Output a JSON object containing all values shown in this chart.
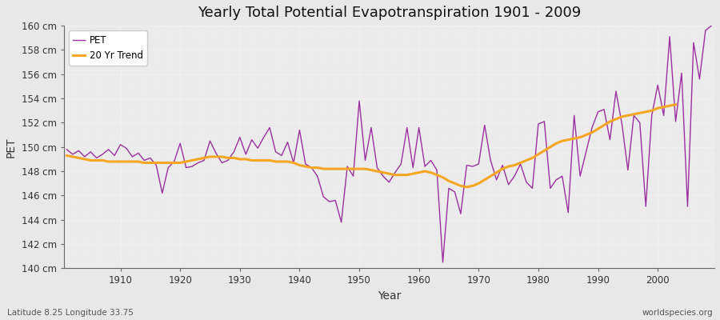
{
  "title": "Yearly Total Potential Evapotranspiration 1901 - 2009",
  "xlabel": "Year",
  "ylabel": "PET",
  "bottom_left_label": "Latitude 8.25 Longitude 33.75",
  "bottom_right_label": "worldspecies.org",
  "pet_color": "#9b30a0",
  "trend_color": "#f5a623",
  "background_color": "#e8e8e8",
  "plot_bg_color": "#ebebeb",
  "ylim": [
    140,
    160
  ],
  "years": [
    1901,
    1902,
    1903,
    1904,
    1905,
    1906,
    1907,
    1908,
    1909,
    1910,
    1911,
    1912,
    1913,
    1914,
    1915,
    1916,
    1917,
    1918,
    1919,
    1920,
    1921,
    1922,
    1923,
    1924,
    1925,
    1926,
    1927,
    1928,
    1929,
    1930,
    1931,
    1932,
    1933,
    1934,
    1935,
    1936,
    1937,
    1938,
    1939,
    1940,
    1941,
    1942,
    1943,
    1944,
    1945,
    1946,
    1947,
    1948,
    1949,
    1950,
    1951,
    1952,
    1953,
    1954,
    1955,
    1956,
    1957,
    1958,
    1959,
    1960,
    1961,
    1962,
    1963,
    1964,
    1965,
    1966,
    1967,
    1968,
    1969,
    1970,
    1971,
    1972,
    1973,
    1974,
    1975,
    1976,
    1977,
    1978,
    1979,
    1980,
    1981,
    1982,
    1983,
    1984,
    1985,
    1986,
    1987,
    1988,
    1989,
    1990,
    1991,
    1992,
    1993,
    1994,
    1995,
    1996,
    1997,
    1998,
    1999,
    2000,
    2001,
    2002,
    2003,
    2004,
    2005,
    2006,
    2007,
    2008,
    2009
  ],
  "pet_values": [
    149.8,
    149.4,
    149.7,
    149.2,
    149.6,
    149.1,
    149.4,
    149.8,
    149.3,
    150.2,
    149.9,
    149.2,
    149.5,
    148.9,
    149.1,
    148.5,
    146.2,
    148.3,
    148.8,
    150.3,
    148.3,
    148.4,
    148.7,
    148.9,
    150.5,
    149.5,
    148.7,
    148.9,
    149.6,
    150.8,
    149.4,
    150.6,
    149.9,
    150.8,
    151.6,
    149.6,
    149.3,
    150.4,
    148.7,
    151.4,
    148.6,
    148.3,
    147.6,
    145.9,
    145.5,
    145.6,
    143.8,
    148.4,
    147.6,
    153.8,
    148.9,
    151.6,
    148.3,
    147.6,
    147.1,
    147.9,
    148.6,
    151.6,
    148.3,
    151.6,
    148.4,
    148.9,
    148.1,
    140.5,
    146.6,
    146.3,
    144.5,
    148.5,
    148.4,
    148.6,
    151.8,
    148.9,
    147.3,
    148.5,
    146.9,
    147.6,
    148.6,
    147.1,
    146.6,
    151.9,
    152.1,
    146.6,
    147.3,
    147.6,
    144.6,
    152.6,
    147.6,
    149.6,
    151.6,
    152.9,
    153.1,
    150.6,
    154.6,
    151.9,
    148.1,
    152.6,
    152.0,
    145.1,
    152.6,
    155.1,
    152.6,
    159.1,
    152.1,
    156.1,
    145.1,
    158.6,
    155.6,
    159.6,
    160.0
  ],
  "trend_values": [
    149.3,
    149.2,
    149.1,
    149.0,
    148.9,
    148.9,
    148.9,
    148.8,
    148.8,
    148.8,
    148.8,
    148.8,
    148.8,
    148.7,
    148.7,
    148.7,
    148.7,
    148.7,
    148.7,
    148.7,
    148.8,
    148.9,
    149.0,
    149.1,
    149.2,
    149.2,
    149.2,
    149.1,
    149.1,
    149.0,
    149.0,
    148.9,
    148.9,
    148.9,
    148.9,
    148.8,
    148.8,
    148.8,
    148.7,
    148.5,
    148.4,
    148.3,
    148.3,
    148.2,
    148.2,
    148.2,
    148.2,
    148.2,
    148.2,
    148.2,
    148.2,
    148.1,
    148.0,
    147.9,
    147.8,
    147.7,
    147.7,
    147.7,
    147.8,
    147.9,
    148.0,
    147.9,
    147.7,
    147.5,
    147.2,
    147.0,
    146.8,
    146.7,
    146.8,
    147.0,
    147.3,
    147.6,
    147.9,
    148.2,
    148.4,
    148.5,
    148.7,
    148.9,
    149.1,
    149.4,
    149.7,
    150.0,
    150.3,
    150.5,
    150.6,
    150.7,
    150.8,
    151.0,
    151.2,
    151.5,
    151.8,
    152.1,
    152.3,
    152.5,
    152.6,
    152.7,
    152.8,
    152.9,
    153.0,
    153.2,
    153.3,
    153.4,
    153.5,
    null,
    null,
    null,
    null,
    null,
    null
  ],
  "xtick_positions": [
    1910,
    1920,
    1930,
    1940,
    1950,
    1960,
    1970,
    1980,
    1990,
    2000
  ],
  "legend_loc": "upper left"
}
